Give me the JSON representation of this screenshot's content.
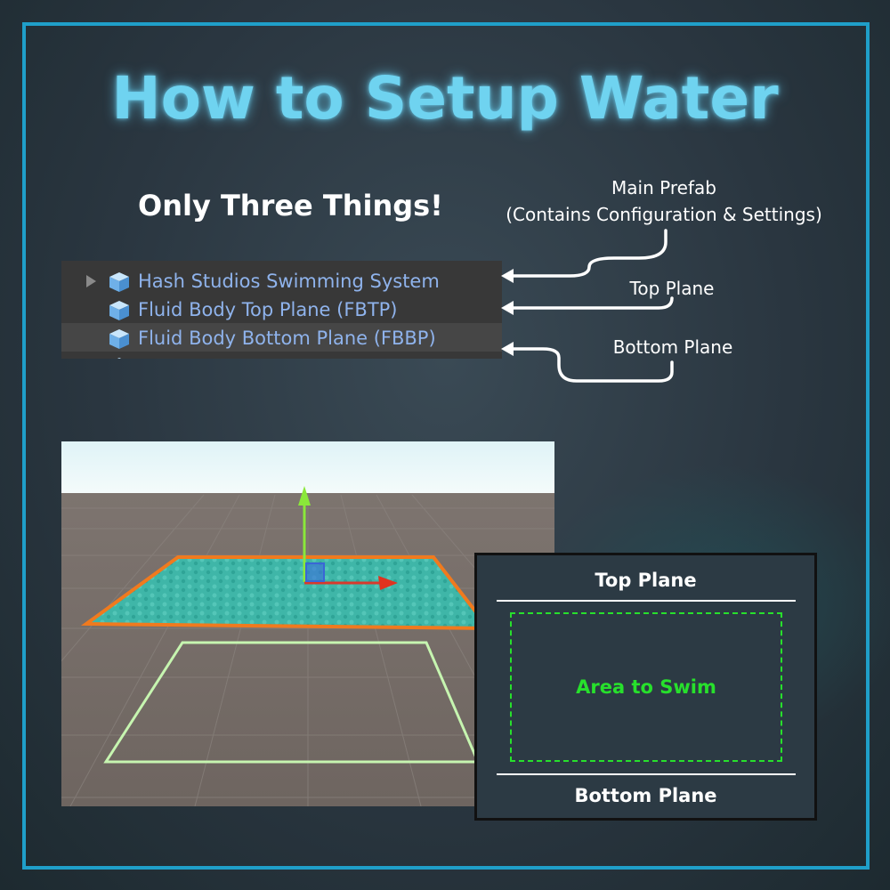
{
  "title": "How to Setup Water",
  "subtitle": "Only Three Things!",
  "hierarchy": {
    "items": [
      {
        "label": "Hash Studios Swimming System",
        "icon": "prefab-cube-icon",
        "expandable": true
      },
      {
        "label": "Fluid Body Top Plane (FBTP)",
        "icon": "prefab-cube-icon",
        "expandable": false
      },
      {
        "label": "Fluid Body Bottom Plane (FBBP)",
        "icon": "prefab-cube-icon",
        "expandable": false,
        "selected": true
      }
    ]
  },
  "annotations": {
    "main_prefab": "Main Prefab",
    "main_prefab_detail": "(Contains Configuration & Settings)",
    "top_plane": "Top Plane",
    "bottom_plane": "Bottom Plane"
  },
  "diagram": {
    "top_label": "Top Plane",
    "area_label": "Area to Swim",
    "bottom_label": "Bottom Plane"
  },
  "colors": {
    "title": "#6fd3f0",
    "frame": "#1f9fc9",
    "hierarchy_text": "#8fb3ec",
    "swim_area": "#27e02c",
    "water": "#3fb6a8",
    "selection_outline": "#f07a1e"
  }
}
